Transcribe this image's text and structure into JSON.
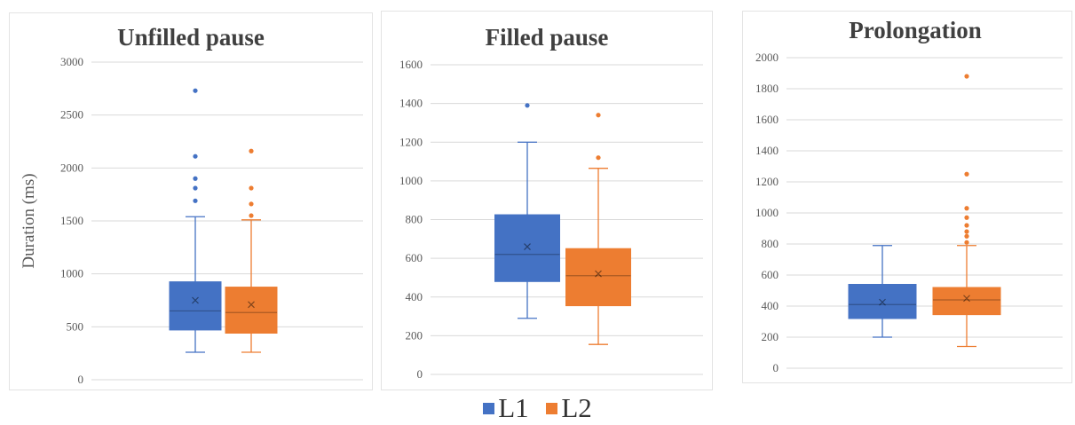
{
  "colors": {
    "L1": "#4472c4",
    "L2": "#ed7d31",
    "grid": "#d9d9d9",
    "axis_text": "#595959",
    "title": "#404040"
  },
  "legend": {
    "items": [
      {
        "label": "L1",
        "color": "#4472c4"
      },
      {
        "label": "L2",
        "color": "#ed7d31"
      }
    ]
  },
  "chart_data": [
    {
      "type": "box",
      "title": "Unfilled pause",
      "ylabel": "Duration (ms)",
      "ylim": [
        0,
        3000
      ],
      "yticks": [
        "0",
        "500",
        "1000",
        "1500",
        "2000",
        "2500",
        "3000"
      ],
      "series": [
        {
          "name": "L1",
          "min": 260,
          "q1": 470,
          "median": 650,
          "q3": 925,
          "max": 1540,
          "mean": 750,
          "outliers": [
            1690,
            1810,
            1900,
            2110,
            2730
          ]
        },
        {
          "name": "L2",
          "min": 260,
          "q1": 440,
          "median": 635,
          "q3": 875,
          "max": 1510,
          "mean": 710,
          "outliers": [
            1550,
            1660,
            1810,
            2160
          ]
        }
      ]
    },
    {
      "type": "box",
      "title": "Filled pause",
      "ylim": [
        0,
        1600
      ],
      "yticks": [
        "0",
        "200",
        "400",
        "600",
        "800",
        "1000",
        "1200",
        "1400",
        "1600"
      ],
      "series": [
        {
          "name": "L1",
          "min": 290,
          "q1": 480,
          "median": 620,
          "q3": 825,
          "max": 1200,
          "mean": 660,
          "outliers": [
            1390
          ]
        },
        {
          "name": "L2",
          "min": 155,
          "q1": 355,
          "median": 510,
          "q3": 650,
          "max": 1065,
          "mean": 520,
          "outliers": [
            1120,
            1340
          ]
        }
      ]
    },
    {
      "type": "box",
      "title": "Prolongation",
      "ylim": [
        0,
        2000
      ],
      "yticks": [
        "0",
        "200",
        "400",
        "600",
        "800",
        "1000",
        "1200",
        "1400",
        "1600",
        "1800",
        "2000"
      ],
      "series": [
        {
          "name": "L1",
          "min": 200,
          "q1": 320,
          "median": 410,
          "q3": 540,
          "max": 790,
          "mean": 425,
          "outliers": []
        },
        {
          "name": "L2",
          "min": 140,
          "q1": 345,
          "median": 440,
          "q3": 520,
          "max": 790,
          "mean": 450,
          "outliers": [
            810,
            850,
            880,
            920,
            970,
            1030,
            1250,
            1880
          ]
        }
      ]
    }
  ]
}
